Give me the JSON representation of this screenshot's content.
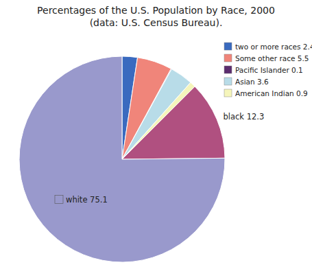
{
  "chart_data": {
    "type": "pie",
    "title": "Percentages of the U.S. Population by Race, 2000\n(data: U.S. Census Bureau).",
    "categories": [
      "two or more races 2.4",
      "Some other race 5.5",
      "Pacific Islander 0.1",
      "Asian 3.6",
      "American Indian 0.9",
      "black 12.3",
      "white 75.1"
    ],
    "values": [
      2.4,
      5.5,
      0.1,
      3.6,
      0.9,
      12.3,
      75.1
    ],
    "colors": [
      "#3a6abf",
      "#f0857a",
      "#5c2d6e",
      "#b8dce8",
      "#f5f5bb",
      "#b05080",
      "#9999cc"
    ],
    "legend": "upper right"
  }
}
